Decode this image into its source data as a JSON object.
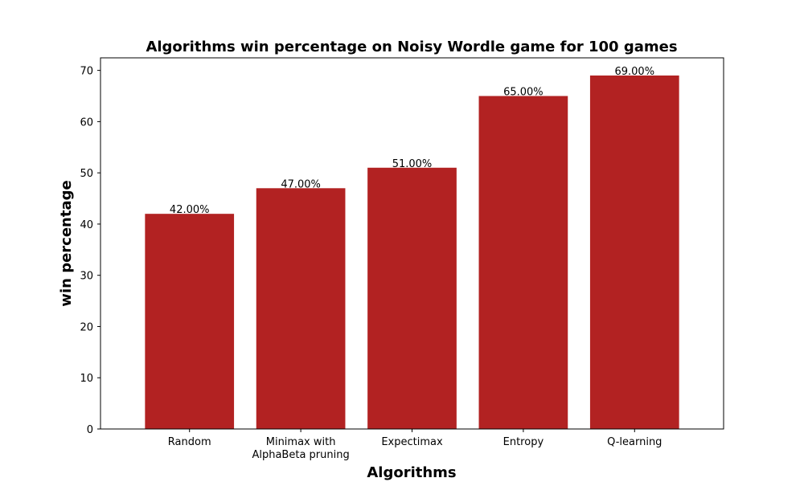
{
  "chart_data": {
    "type": "bar",
    "title": "Algorithms win percentage on Noisy Wordle game for 100 games",
    "xlabel": "Algorithms",
    "ylabel": "win percentage",
    "categories": [
      [
        "Random"
      ],
      [
        "Minimax with",
        "AlphaBeta pruning"
      ],
      [
        "Expectimax"
      ],
      [
        "Entropy"
      ],
      [
        "Q-learning"
      ]
    ],
    "values": [
      42,
      47,
      51,
      65,
      69
    ],
    "data_labels": [
      "42.00%",
      "47.00%",
      "51.00%",
      "65.00%",
      "69.00%"
    ],
    "ylim": [
      0,
      72.45
    ],
    "yticks": [
      0,
      10,
      20,
      30,
      40,
      50,
      60,
      70
    ],
    "bar_color": "#b22222",
    "grid": false,
    "legend": "none"
  }
}
